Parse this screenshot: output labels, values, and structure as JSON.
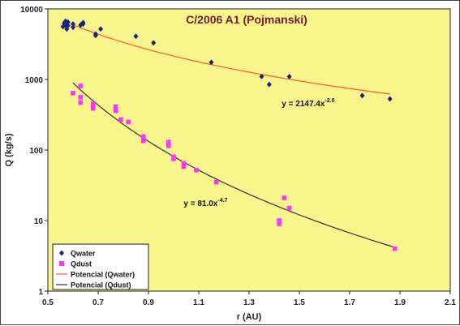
{
  "chart_data": {
    "type": "scatter",
    "title": "C/2006 A1 (Pojmanski)",
    "xlabel": "r (AU)",
    "ylabel": "Q (kg/s)",
    "xlim": [
      0.5,
      2.1
    ],
    "ylim": [
      1,
      10000
    ],
    "yscale": "log",
    "x_ticks": [
      "0.5",
      "0.7",
      "0.9",
      "1.1",
      "1.3",
      "1.5",
      "1.7",
      "1.9",
      "2.1"
    ],
    "y_ticks": [
      "1",
      "10",
      "100",
      "1000",
      "10000"
    ],
    "grid": false,
    "legend_position": "bottom-left",
    "colors": {
      "plot_bg": "#f7f58c",
      "qwater": "#1a237e",
      "qdust": "#ff33ff",
      "fit_water": "#ff5533",
      "fit_dust": "#333333",
      "title": "#7b1a2a"
    },
    "series": [
      {
        "name": "Qwater",
        "kind": "points",
        "marker": "diamond",
        "points": [
          [
            0.56,
            5600
          ],
          [
            0.565,
            6300
          ],
          [
            0.57,
            5900
          ],
          [
            0.57,
            6700
          ],
          [
            0.575,
            5200
          ],
          [
            0.58,
            6500
          ],
          [
            0.58,
            5800
          ],
          [
            0.6,
            6100
          ],
          [
            0.6,
            5500
          ],
          [
            0.63,
            5900
          ],
          [
            0.64,
            6400
          ],
          [
            0.64,
            6100
          ],
          [
            0.69,
            4400
          ],
          [
            0.69,
            4200
          ],
          [
            0.71,
            5200
          ],
          [
            0.85,
            4100
          ],
          [
            0.92,
            3300
          ],
          [
            1.15,
            1750
          ],
          [
            1.35,
            1100
          ],
          [
            1.38,
            850
          ],
          [
            1.46,
            1100
          ],
          [
            1.75,
            590
          ],
          [
            1.86,
            530
          ]
        ]
      },
      {
        "name": "Qdust",
        "kind": "points",
        "marker": "square",
        "points": [
          [
            0.6,
            640
          ],
          [
            0.63,
            560
          ],
          [
            0.63,
            470
          ],
          [
            0.63,
            810
          ],
          [
            0.68,
            450
          ],
          [
            0.68,
            390
          ],
          [
            0.77,
            410
          ],
          [
            0.77,
            360
          ],
          [
            0.79,
            270
          ],
          [
            0.82,
            250
          ],
          [
            0.88,
            155
          ],
          [
            0.88,
            135
          ],
          [
            0.98,
            130
          ],
          [
            0.98,
            115
          ],
          [
            1.0,
            80
          ],
          [
            1.0,
            75
          ],
          [
            1.04,
            65
          ],
          [
            1.04,
            58
          ],
          [
            1.09,
            52
          ],
          [
            1.17,
            35
          ],
          [
            1.42,
            10
          ],
          [
            1.42,
            9
          ],
          [
            1.44,
            21
          ],
          [
            1.46,
            15
          ],
          [
            1.88,
            4
          ]
        ]
      },
      {
        "name": "Potencial (Qwater)",
        "kind": "fit",
        "coef": 2147.4,
        "exponent": -2.0,
        "x_range": [
          0.6,
          1.86
        ]
      },
      {
        "name": "Potencial (Qdust)",
        "kind": "fit",
        "coef": 81.0,
        "exponent": -4.7,
        "x_range": [
          0.6,
          1.88
        ]
      }
    ],
    "annotations": [
      {
        "text_base": "y = 2147.4x",
        "text_exp": "-2.0",
        "at": [
          1.43,
          420
        ]
      },
      {
        "text_base": "y = 81.0x",
        "text_exp": "-4.7",
        "at": [
          1.04,
          16
        ]
      }
    ]
  }
}
